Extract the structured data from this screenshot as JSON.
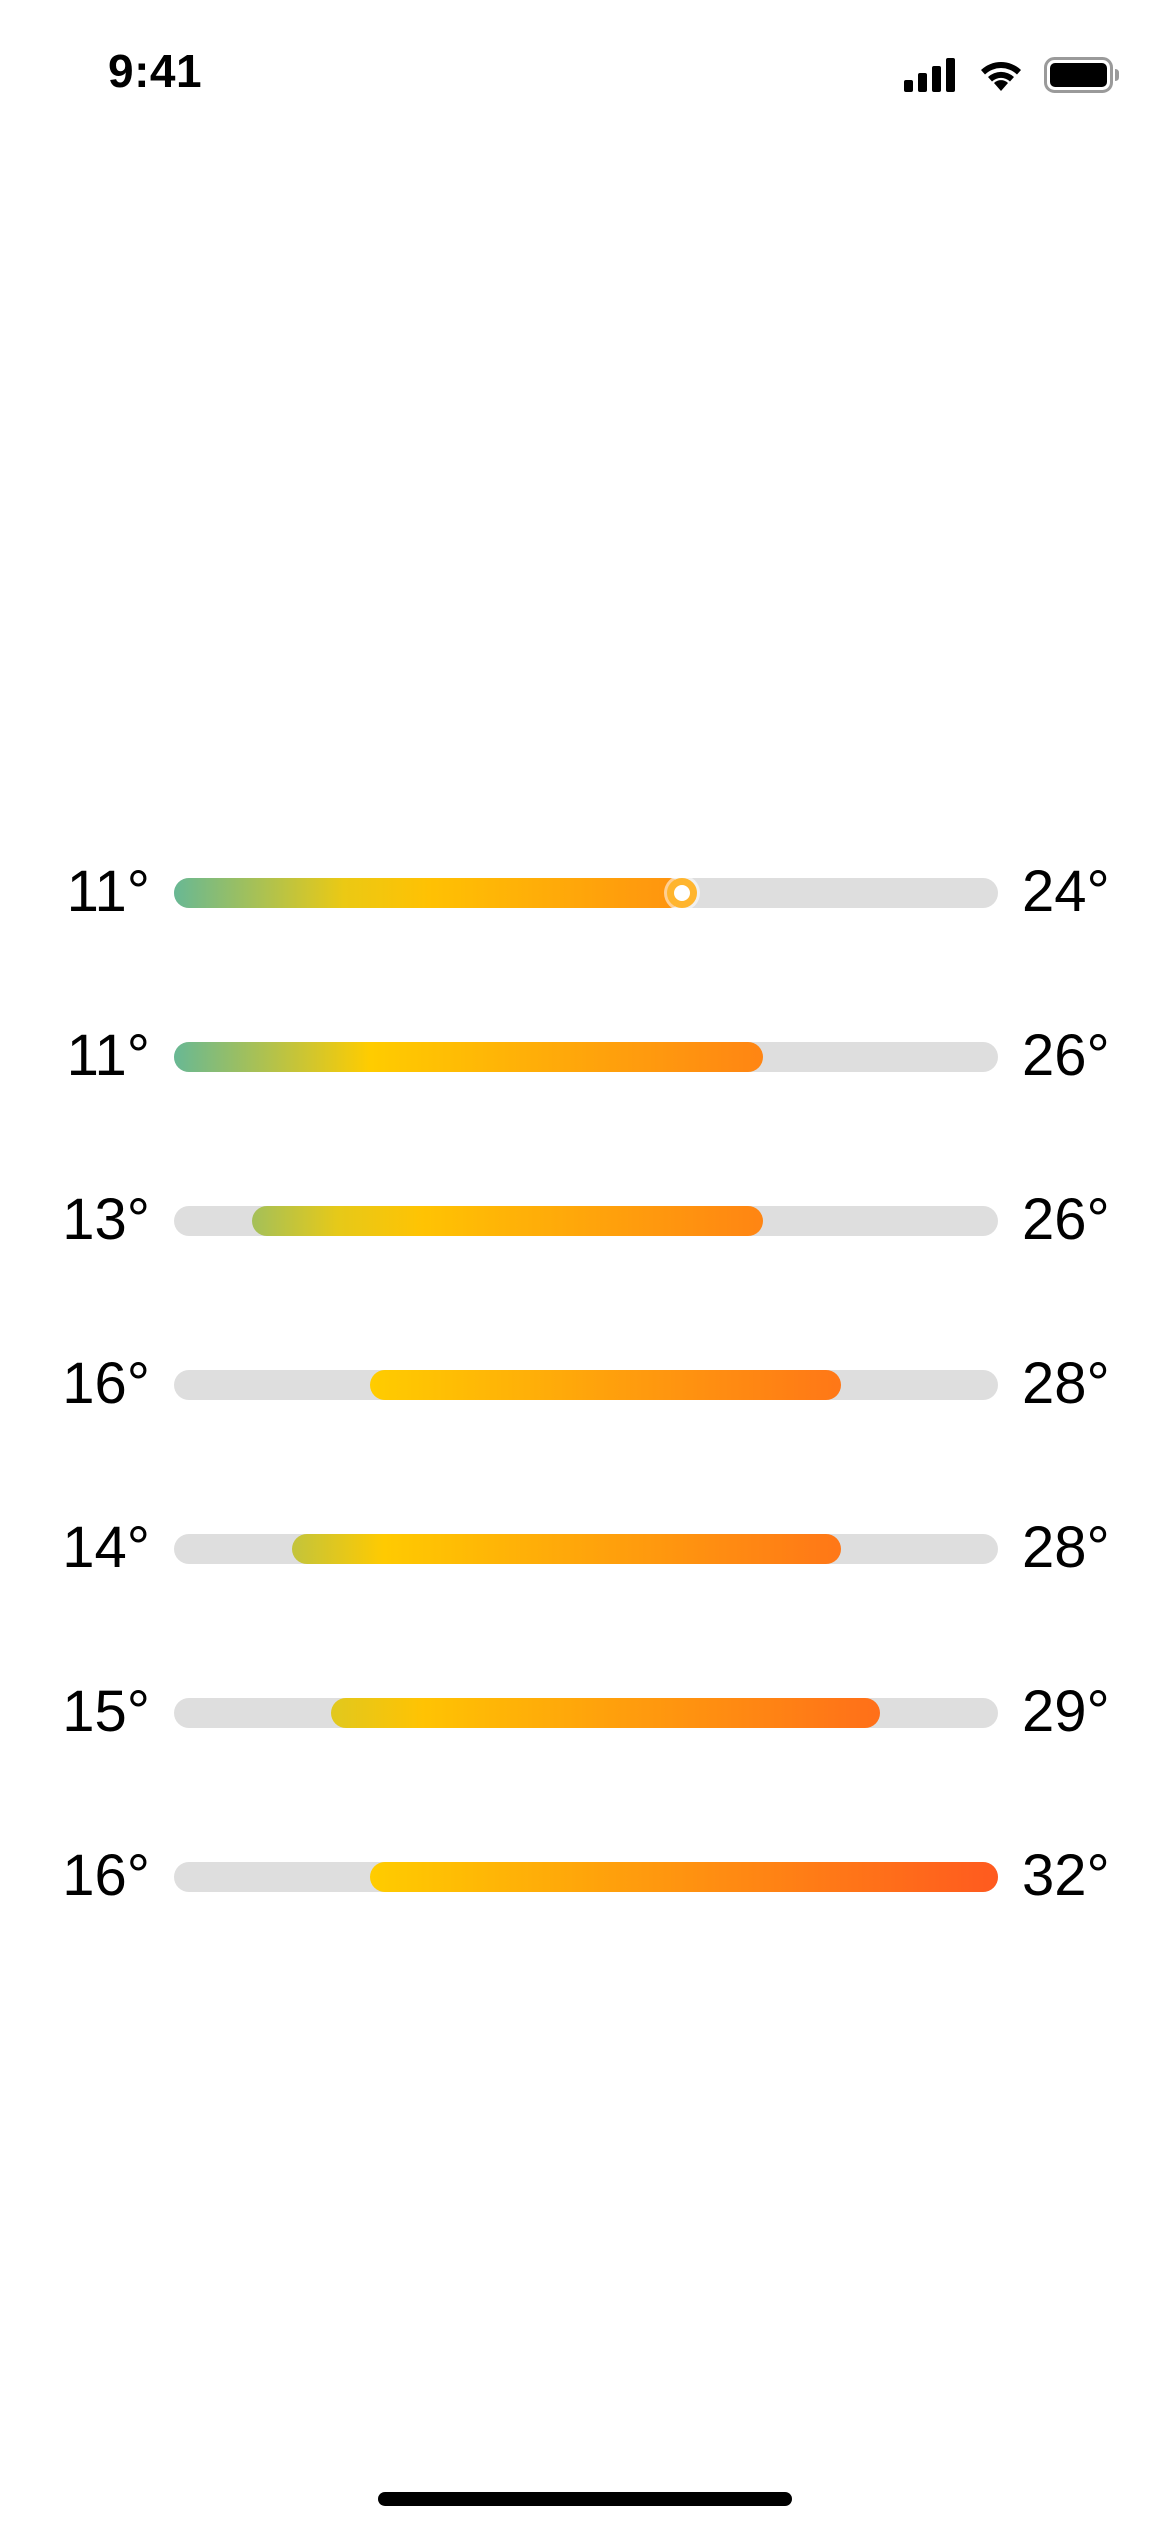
{
  "status_bar": {
    "time": "9:41",
    "icons": [
      "cellular-signal-icon",
      "wifi-icon",
      "battery-icon"
    ]
  },
  "scale": {
    "min": 11,
    "max": 32,
    "current": 24
  },
  "gradient_stops": [
    {
      "temp": 11,
      "color": "#68b894"
    },
    {
      "temp": 16,
      "color": "#ffcc00"
    },
    {
      "temp": 32,
      "color": "#ff5a1f"
    }
  ],
  "track_color": "#dedede",
  "forecast": [
    {
      "low": 11,
      "high": 24,
      "low_label": "11°",
      "high_label": "24°",
      "current": 24
    },
    {
      "low": 11,
      "high": 26,
      "low_label": "11°",
      "high_label": "26°"
    },
    {
      "low": 13,
      "high": 26,
      "low_label": "13°",
      "high_label": "26°"
    },
    {
      "low": 16,
      "high": 28,
      "low_label": "16°",
      "high_label": "28°"
    },
    {
      "low": 14,
      "high": 28,
      "low_label": "14°",
      "high_label": "28°"
    },
    {
      "low": 15,
      "high": 29,
      "low_label": "15°",
      "high_label": "29°"
    },
    {
      "low": 16,
      "high": 32,
      "low_label": "16°",
      "high_label": "32°"
    }
  ]
}
